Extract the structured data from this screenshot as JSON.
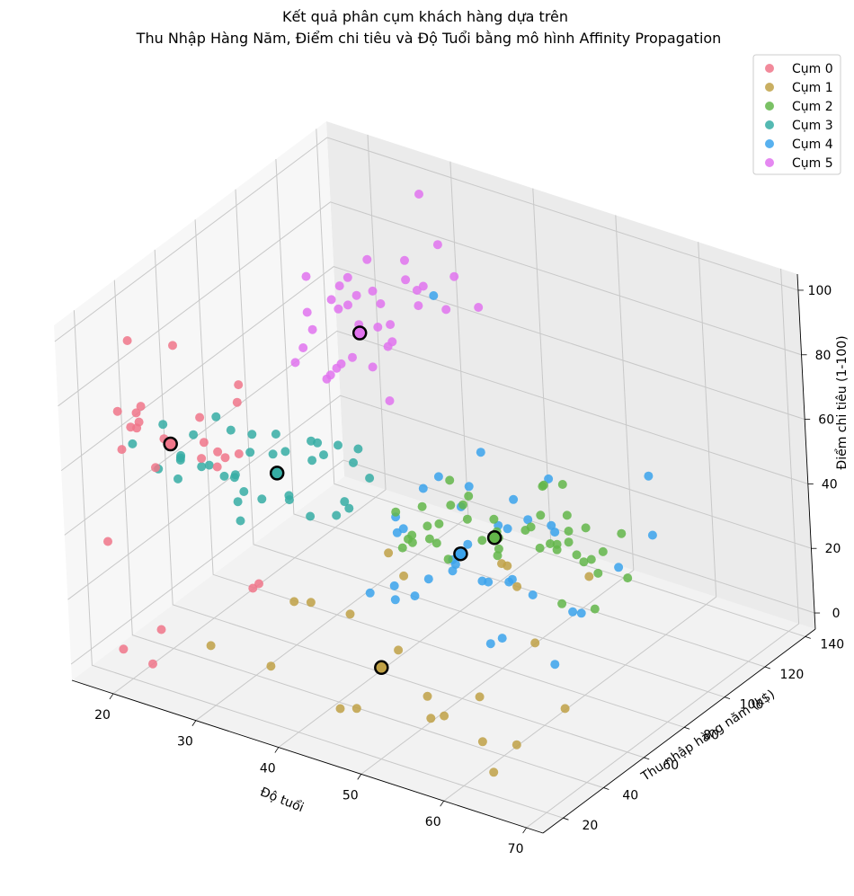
{
  "chart_data": {
    "type": "scatter",
    "title_line1": "Kết quả phân cụm khách hàng dựa trên",
    "title_line2": "Thu Nhập Hàng Năm, Điểm chi tiêu và Độ Tuổi bằng mô hình Affinity Propagation",
    "xlabel": "Độ tuổi",
    "ylabel": "Thu nhập hàng năm (k$)",
    "zlabel": "Điểm chi tiêu (1-100)",
    "xlim": [
      15,
      72
    ],
    "ylim": [
      10,
      145
    ],
    "zlim": [
      -5,
      105
    ],
    "xticks": [
      20,
      30,
      40,
      50,
      60,
      70
    ],
    "yticks": [
      20,
      40,
      60,
      80,
      100,
      120,
      140
    ],
    "zticks": [
      0,
      20,
      40,
      60,
      80,
      100
    ],
    "grid": true,
    "legend_position": "top-right",
    "series": [
      {
        "name": "Cụm 0",
        "color": "#f0768a",
        "points": [
          [
            19,
            15,
            39
          ],
          [
            21,
            15,
            81
          ],
          [
            20,
            16,
            6
          ],
          [
            23,
            16,
            77
          ],
          [
            22,
            17,
            76
          ],
          [
            35,
            18,
            94
          ],
          [
            23,
            18,
            3
          ],
          [
            30,
            19,
            72
          ],
          [
            35,
            19,
            99
          ],
          [
            24,
            19,
            14
          ],
          [
            22,
            20,
            79
          ],
          [
            20,
            20,
            66
          ],
          [
            35,
            21,
            35
          ],
          [
            25,
            21,
            73
          ],
          [
            31,
            23,
            73
          ],
          [
            29,
            23,
            82
          ],
          [
            35,
            24,
            35
          ],
          [
            23,
            24,
            61
          ],
          [
            21,
            25,
            73
          ],
          [
            18,
            33,
            92
          ],
          [
            19,
            34,
            72
          ],
          [
            30,
            37,
            65
          ],
          [
            27,
            38,
            58
          ],
          [
            22,
            39,
            91
          ],
          [
            25,
            40,
            63
          ],
          [
            27,
            42,
            59
          ]
        ],
        "center": [
          25,
          24,
          70
        ]
      },
      {
        "name": "Cụm 1",
        "color": "#c0a146",
        "points": [
          [
            40,
            21,
            35
          ],
          [
            30,
            19,
            14
          ],
          [
            64,
            19,
            3
          ],
          [
            67,
            19,
            14
          ],
          [
            58,
            20,
            15
          ],
          [
            37,
            20,
            13
          ],
          [
            52,
            23,
            29
          ],
          [
            46,
            25,
            5
          ],
          [
            54,
            28,
            14
          ],
          [
            45,
            28,
            32
          ],
          [
            63,
            18,
            26
          ],
          [
            60,
            30,
            4
          ],
          [
            65,
            38,
            35
          ],
          [
            49,
            39,
            42
          ],
          [
            47,
            40,
            47
          ],
          [
            67,
            43,
            14
          ],
          [
            60,
            46,
            51
          ],
          [
            57,
            55,
            45
          ],
          [
            53,
            33,
            4
          ],
          [
            70,
            46,
            56
          ],
          [
            45,
            21,
            6
          ],
          [
            40,
            29,
            31
          ],
          [
            59,
            54,
            40
          ]
        ],
        "center": [
          48,
          30,
          17
        ]
      },
      {
        "name": "Cụm 2",
        "color": "#63b64a",
        "points": [
          [
            49,
            42,
            52
          ],
          [
            50,
            40,
            55
          ],
          [
            53,
            40,
            55
          ],
          [
            48,
            43,
            48
          ],
          [
            49,
            44,
            50
          ],
          [
            67,
            44,
            46
          ],
          [
            52,
            49,
            45
          ],
          [
            55,
            54,
            51
          ],
          [
            65,
            60,
            52
          ],
          [
            68,
            61,
            55
          ],
          [
            47,
            60,
            42
          ],
          [
            43,
            60,
            47
          ],
          [
            48,
            61,
            47
          ],
          [
            60,
            62,
            49
          ],
          [
            55,
            62,
            48
          ],
          [
            57,
            54,
            50
          ],
          [
            70,
            48,
            45
          ],
          [
            67,
            62,
            47
          ],
          [
            51,
            63,
            50
          ],
          [
            54,
            64,
            52
          ],
          [
            45,
            65,
            48
          ],
          [
            48,
            67,
            50
          ],
          [
            49,
            69,
            50
          ],
          [
            56,
            71,
            47
          ],
          [
            59,
            67,
            56
          ],
          [
            53,
            69,
            45
          ],
          [
            47,
            71,
            55
          ],
          [
            57,
            77,
            59
          ],
          [
            58,
            78,
            41
          ],
          [
            67,
            76,
            39
          ],
          [
            66,
            78,
            51
          ],
          [
            66,
            63,
            50
          ],
          [
            63,
            71,
            43
          ],
          [
            50,
            68,
            54
          ],
          [
            45,
            67,
            41
          ],
          [
            59,
            74,
            42
          ],
          [
            65,
            65,
            58
          ],
          [
            60,
            67,
            48
          ],
          [
            58,
            66,
            52
          ],
          [
            55,
            61,
            43
          ],
          [
            57,
            86,
            55
          ],
          [
            59,
            80,
            45
          ],
          [
            62,
            68,
            58
          ],
          [
            61,
            72,
            47
          ],
          [
            54,
            88,
            51
          ]
        ],
        "center": [
          55,
          60,
          49
        ]
      },
      {
        "name": "Cụm 3",
        "color": "#36ada4",
        "points": [
          [
            18,
            33,
            60
          ],
          [
            18,
            48,
            59
          ],
          [
            24,
            39,
            65
          ],
          [
            22,
            40,
            55
          ],
          [
            20,
            37,
            52
          ],
          [
            25,
            42,
            55
          ],
          [
            21,
            44,
            53
          ],
          [
            26,
            45,
            51
          ],
          [
            20,
            48,
            51
          ],
          [
            27,
            46,
            51
          ],
          [
            23,
            46,
            51
          ],
          [
            19,
            50,
            42
          ],
          [
            24,
            57,
            58
          ],
          [
            23,
            62,
            41
          ],
          [
            27,
            54,
            55
          ],
          [
            31,
            43,
            49
          ],
          [
            29,
            40,
            42
          ],
          [
            31,
            56,
            44
          ],
          [
            35,
            58,
            59
          ],
          [
            34,
            54,
            41
          ],
          [
            26,
            54,
            42
          ],
          [
            30,
            60,
            40
          ],
          [
            38,
            51,
            46
          ],
          [
            32,
            64,
            52
          ],
          [
            28,
            67,
            50
          ],
          [
            36,
            65,
            40
          ],
          [
            24,
            67,
            52
          ],
          [
            35,
            72,
            50
          ],
          [
            32,
            64,
            58
          ],
          [
            40,
            60,
            55
          ],
          [
            27,
            47,
            43
          ],
          [
            36,
            63,
            43
          ],
          [
            28,
            61,
            52
          ],
          [
            29,
            59,
            60
          ],
          [
            32,
            67,
            56
          ],
          [
            34,
            69,
            56
          ],
          [
            38,
            63,
            61
          ],
          [
            22,
            58,
            60
          ]
        ],
        "center": [
          32,
          47,
          56
        ]
      },
      {
        "name": "Cụm 4",
        "color": "#3ba3ec",
        "points": [
          [
            36,
            73,
            10
          ],
          [
            38,
            77,
            12
          ],
          [
            42,
            78,
            17
          ],
          [
            45,
            78,
            22
          ],
          [
            50,
            75,
            5
          ],
          [
            37,
            81,
            5
          ],
          [
            43,
            86,
            20
          ],
          [
            36,
            87,
            27
          ],
          [
            46,
            88,
            15
          ],
          [
            33,
            99,
            14
          ],
          [
            59,
            103,
            23
          ],
          [
            38,
            113,
            8
          ],
          [
            53,
            69,
            12
          ],
          [
            51,
            83,
            22
          ],
          [
            41,
            71,
            35
          ],
          [
            47,
            87,
            16
          ],
          [
            48,
            93,
            14
          ],
          [
            40,
            93,
            40
          ],
          [
            46,
            97,
            28
          ],
          [
            52,
            88,
            39
          ],
          [
            56,
            73,
            26
          ],
          [
            59,
            80,
            20
          ],
          [
            47,
            101,
            35
          ],
          [
            43,
            113,
            17
          ],
          [
            38,
            115,
            25
          ],
          [
            45,
            126,
            28
          ],
          [
            32,
            126,
            74
          ],
          [
            34,
            137,
            22
          ],
          [
            47,
            120,
            16
          ],
          [
            40,
            103,
            26
          ],
          [
            55,
            135,
            33
          ],
          [
            57,
            78,
            3
          ],
          [
            58,
            88,
            15
          ],
          [
            42,
            71,
            15
          ],
          [
            52,
            99,
            32
          ],
          [
            59,
            120,
            25
          ],
          [
            37,
            97,
            32
          ],
          [
            40,
            99,
            10
          ]
        ],
        "center": [
          43,
          90,
          20
        ]
      },
      {
        "name": "Cụm 5",
        "color": "#e173ee",
        "points": [
          [
            29,
            70,
            77
          ],
          [
            32,
            73,
            73
          ],
          [
            35,
            78,
            90
          ],
          [
            32,
            78,
            74
          ],
          [
            33,
            81,
            93
          ],
          [
            39,
            78,
            88
          ],
          [
            29,
            79,
            83
          ],
          [
            31,
            81,
            93
          ],
          [
            30,
            88,
            86
          ],
          [
            30,
            88,
            69
          ],
          [
            27,
            85,
            95
          ],
          [
            29,
            93,
            90
          ],
          [
            35,
            93,
            83
          ],
          [
            30,
            97,
            86
          ],
          [
            32,
            97,
            89
          ],
          [
            38,
            98,
            95
          ],
          [
            28,
            101,
            88
          ],
          [
            36,
            103,
            85
          ],
          [
            32,
            103,
            69
          ],
          [
            32,
            113,
            91
          ],
          [
            38,
            113,
            91
          ],
          [
            39,
            120,
            79
          ],
          [
            30,
            126,
            74
          ],
          [
            33,
            71,
            76
          ],
          [
            30,
            137,
            83
          ],
          [
            28,
            137,
            97
          ],
          [
            35,
            87,
            85
          ],
          [
            30,
            73,
            92
          ],
          [
            36,
            87,
            63
          ],
          [
            31,
            99,
            97
          ],
          [
            32,
            113,
            85
          ],
          [
            35,
            120,
            75
          ],
          [
            30,
            103,
            61
          ],
          [
            34,
            78,
            79
          ],
          [
            36,
            85,
            94
          ],
          [
            28,
            78,
            77
          ]
        ],
        "center": [
          33,
          86,
          82
        ]
      }
    ]
  }
}
